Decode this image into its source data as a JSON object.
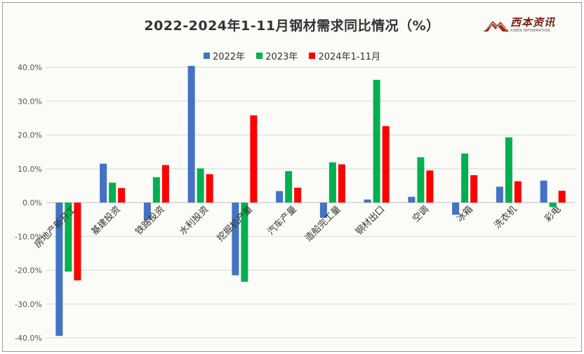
{
  "brand": {
    "name": "西本资讯",
    "subtitle": "XIBEN INFORMATION"
  },
  "colors": {
    "2022": "#4472C4",
    "2023": "#00B050",
    "2024": "#FF0000"
  },
  "chart_data": {
    "type": "bar",
    "title": "2022-2024年1-11月钢材需求同比情况（%）",
    "categories": [
      "房地产新开工",
      "基建投资",
      "铁路投资",
      "水利投资",
      "挖掘机产量",
      "汽车产量",
      "造船完工量",
      "钢材出口",
      "空调",
      "冰箱",
      "洗衣机",
      "彩电"
    ],
    "series": [
      {
        "name": "2022年",
        "color": "#4472C4",
        "values": [
          -39.4,
          11.5,
          -5.1,
          40.4,
          -21.5,
          3.4,
          -4.5,
          0.9,
          1.7,
          -3.6,
          4.7,
          6.5
        ]
      },
      {
        "name": "2023年",
        "color": "#00B050",
        "values": [
          -20.4,
          5.9,
          7.5,
          10.1,
          -23.4,
          9.3,
          11.9,
          36.3,
          13.4,
          14.5,
          19.3,
          -1.3
        ]
      },
      {
        "name": "2024年1-11月",
        "color": "#FF0000",
        "values": [
          -23.0,
          4.3,
          11.1,
          8.4,
          25.8,
          4.4,
          11.3,
          22.6,
          9.5,
          8.1,
          6.3,
          3.5
        ]
      }
    ],
    "ylim": [
      -40,
      40
    ],
    "yticks": [
      -40,
      -30,
      -20,
      -10,
      0,
      10,
      20,
      30,
      40
    ],
    "ytick_labels": [
      "-40.0%",
      "-30.0%",
      "-20.0%",
      "-10.0%",
      "0.0%",
      "10.0%",
      "20.0%",
      "30.0%",
      "40.0%"
    ],
    "grid": true,
    "legend_position": "top-center"
  }
}
